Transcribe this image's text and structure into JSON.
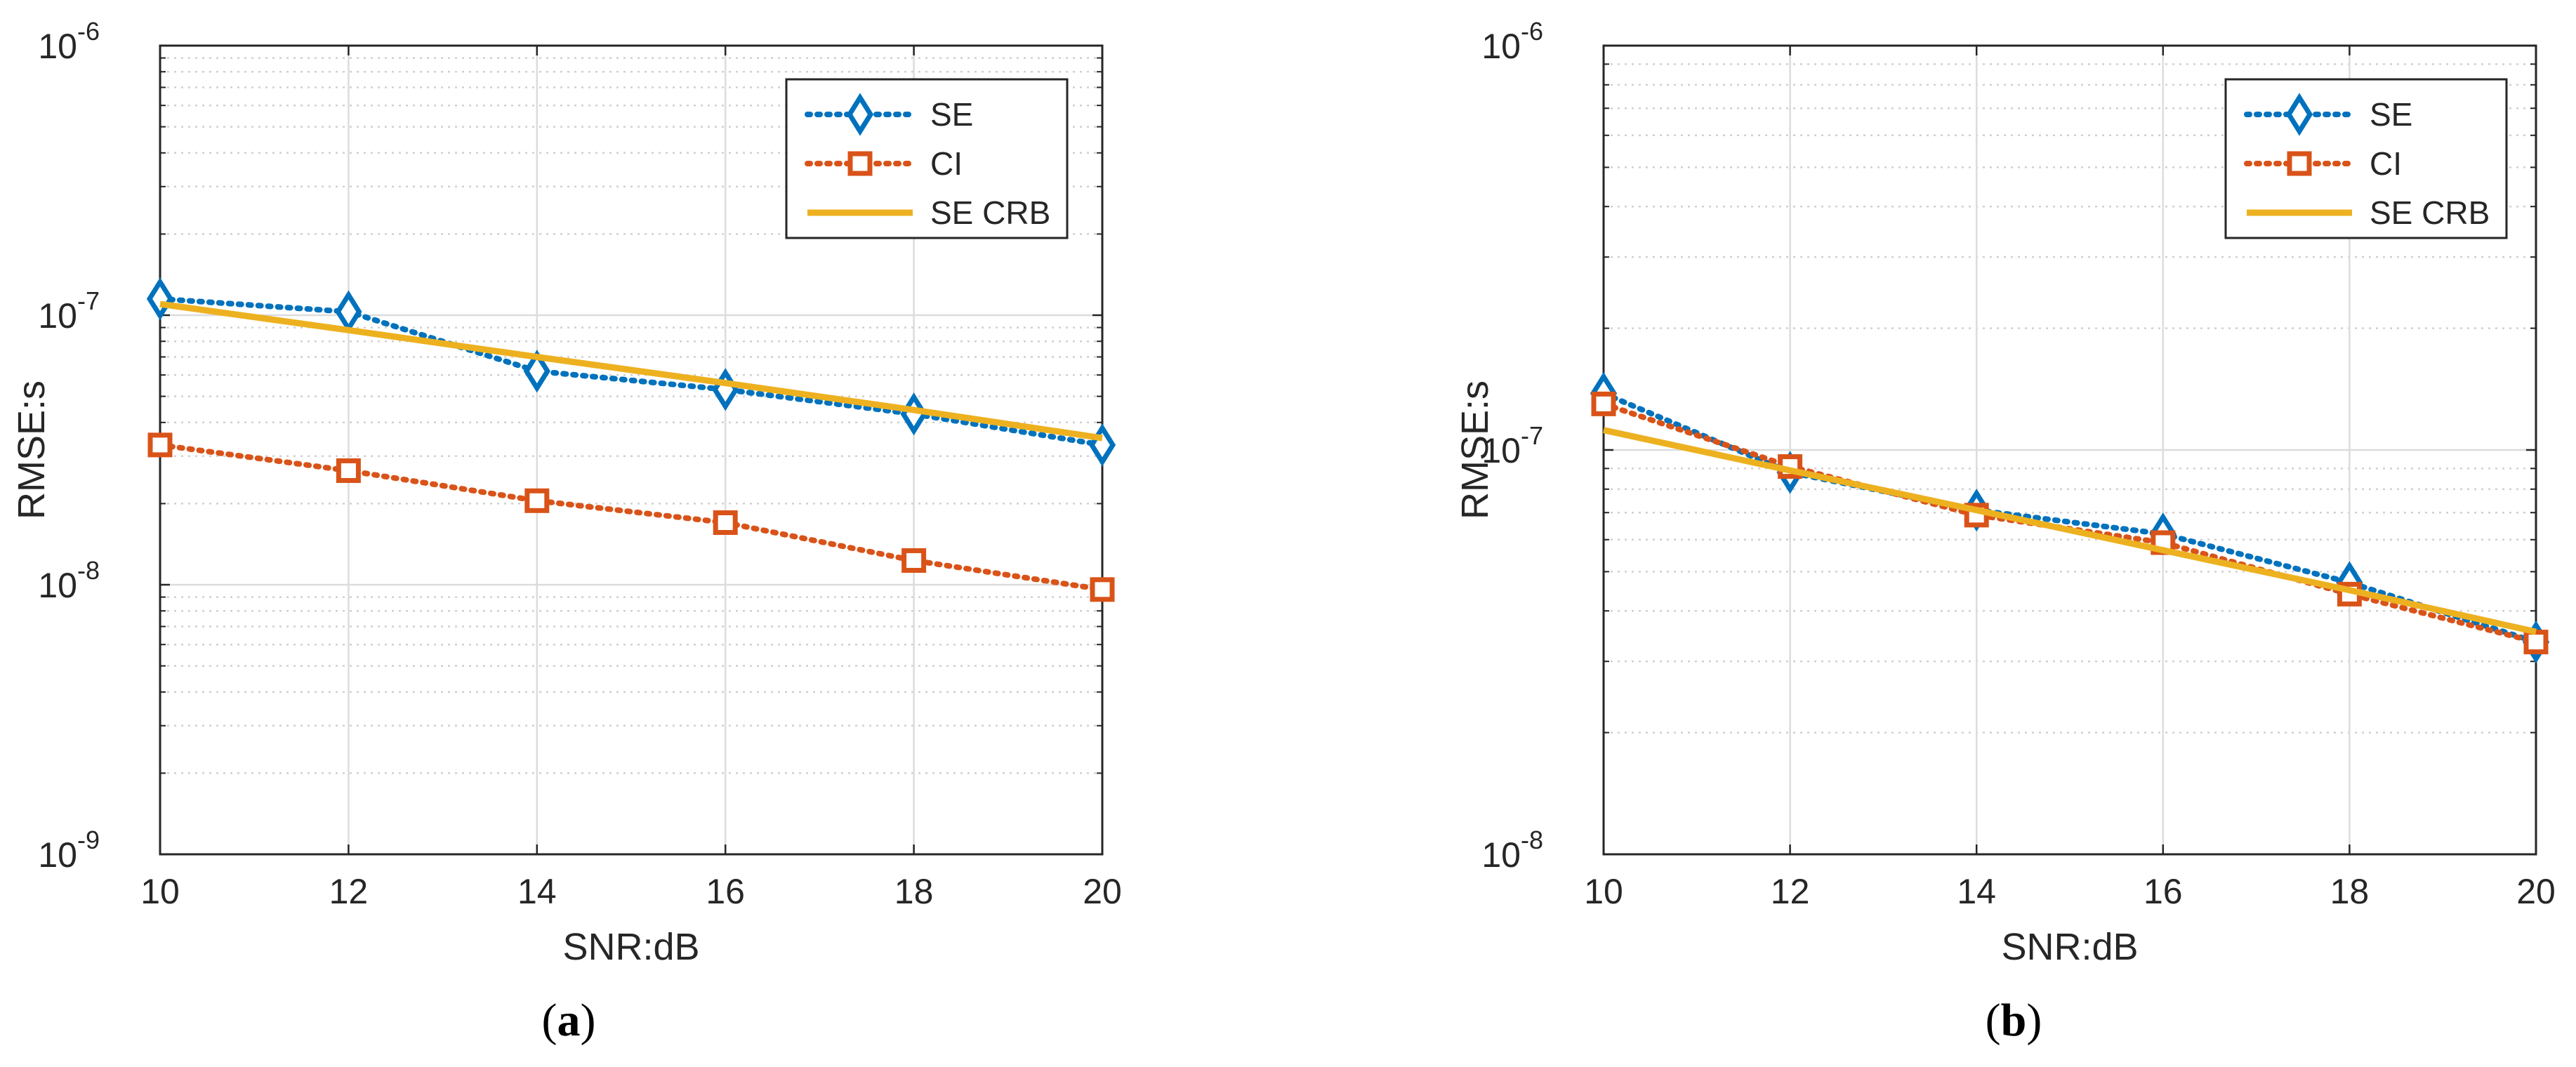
{
  "chart_data": [
    {
      "type": "line",
      "panel": "a",
      "caption_letter": "a",
      "xlabel": "SNR:dB",
      "ylabel": "RMSE:s",
      "yscale": "log",
      "xlim": [
        10,
        20
      ],
      "ylim": [
        1e-09,
        1e-06
      ],
      "xticks": [
        "10",
        "12",
        "14",
        "16",
        "18",
        "20"
      ],
      "yticks": [
        {
          "base": "10",
          "exp": "-9",
          "value": 1e-09
        },
        {
          "base": "10",
          "exp": "-8",
          "value": 1e-08
        },
        {
          "base": "10",
          "exp": "-7",
          "value": 1e-07
        },
        {
          "base": "10",
          "exp": "-6",
          "value": 1e-06
        }
      ],
      "grid": true,
      "legend_position": "top-right",
      "x": [
        10,
        12,
        14,
        16,
        18,
        20
      ],
      "series": [
        {
          "name": "SE",
          "style": "dotted",
          "marker": "diamond",
          "color": "#0072BD",
          "values": [
            1.15e-07,
            1.03e-07,
            6.2e-08,
            5.3e-08,
            4.3e-08,
            3.3e-08
          ]
        },
        {
          "name": "CI",
          "style": "dotted",
          "marker": "square",
          "color": "#D95319",
          "values": [
            3.3e-08,
            2.65e-08,
            2.05e-08,
            1.7e-08,
            1.23e-08,
            9.6e-09
          ]
        },
        {
          "name": "SE CRB",
          "style": "solid",
          "marker": "none",
          "color": "#EDB120",
          "values": [
            1.1e-07,
            8.8e-08,
            7e-08,
            5.6e-08,
            4.45e-08,
            3.5e-08
          ]
        }
      ]
    },
    {
      "type": "line",
      "panel": "b",
      "caption_letter": "b",
      "xlabel": "SNR:dB",
      "ylabel": "RMSE:s",
      "yscale": "log",
      "xlim": [
        10,
        20
      ],
      "ylim": [
        1e-08,
        1e-06
      ],
      "xticks": [
        "10",
        "12",
        "14",
        "16",
        "18",
        "20"
      ],
      "yticks": [
        {
          "base": "10",
          "exp": "-8",
          "value": 1e-08
        },
        {
          "base": "10",
          "exp": "-7",
          "value": 1e-07
        },
        {
          "base": "10",
          "exp": "-6",
          "value": 1e-06
        }
      ],
      "grid": true,
      "legend_position": "top-right",
      "x": [
        10,
        12,
        14,
        16,
        18,
        20
      ],
      "series": [
        {
          "name": "SE",
          "style": "dotted",
          "marker": "diamond",
          "color": "#0072BD",
          "values": [
            1.38e-07,
            8.8e-08,
            7.1e-08,
            6.2e-08,
            4.7e-08,
            3.35e-08
          ]
        },
        {
          "name": "CI",
          "style": "dotted",
          "marker": "square",
          "color": "#D95319",
          "values": [
            1.3e-07,
            9.1e-08,
            6.9e-08,
            5.9e-08,
            4.4e-08,
            3.35e-08
          ]
        },
        {
          "name": "SE CRB",
          "style": "solid",
          "marker": "none",
          "color": "#EDB120",
          "values": [
            1.12e-07,
            8.9e-08,
            7.1e-08,
            5.65e-08,
            4.5e-08,
            3.55e-08
          ]
        }
      ]
    }
  ]
}
